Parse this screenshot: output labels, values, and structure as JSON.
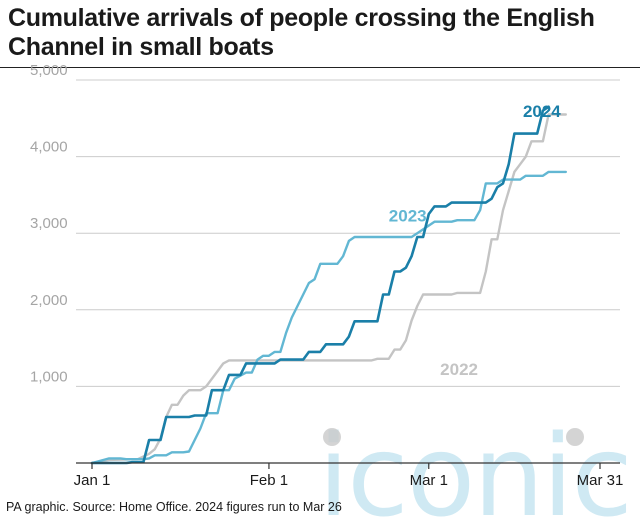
{
  "title": "Cumulative arrivals of people crossing the English Channel in small boats",
  "footer": "PA graphic. Source: Home Office. 2024 figures run to Mar 26",
  "watermark": "iconic",
  "colors": {
    "2024": "#1a7fa8",
    "2023": "#62b7d3",
    "2022": "#c4c4c4",
    "axis": "#333333",
    "grid": "#cccccc",
    "tick_text": "#a5a5a5",
    "watermark": "#bfe2ef"
  },
  "chart_data": {
    "type": "line",
    "title": "Cumulative arrivals of people crossing the English Channel in small boats",
    "xlabel": "",
    "ylabel": "",
    "x_unit": "day of year (Jan 1 = 1)",
    "xlim": [
      1,
      90
    ],
    "ylim": [
      0,
      5000
    ],
    "x_ticks": [
      {
        "label": "Jan 1",
        "value": 1
      },
      {
        "label": "Feb 1",
        "value": 32
      },
      {
        "label": "Mar 1",
        "value": 60
      },
      {
        "label": "Mar 31",
        "value": 90
      }
    ],
    "y_ticks": [
      {
        "label": "1,000",
        "value": 1000
      },
      {
        "label": "2,000",
        "value": 2000
      },
      {
        "label": "3,000",
        "value": 3000
      },
      {
        "label": "4,000",
        "value": 4000
      },
      {
        "label": "5,000",
        "value": 5000
      }
    ],
    "grid": true,
    "series": [
      {
        "name": "2022",
        "label_position": [
          62,
          1150
        ],
        "points": [
          [
            1,
            0
          ],
          [
            4,
            40
          ],
          [
            9,
            50
          ],
          [
            11,
            120
          ],
          [
            12,
            180
          ],
          [
            13,
            320
          ],
          [
            14,
            600
          ],
          [
            15,
            760
          ],
          [
            16,
            760
          ],
          [
            17,
            880
          ],
          [
            18,
            950
          ],
          [
            20,
            950
          ],
          [
            21,
            1000
          ],
          [
            23,
            1200
          ],
          [
            24,
            1300
          ],
          [
            25,
            1340
          ],
          [
            50,
            1340
          ],
          [
            51,
            1360
          ],
          [
            53,
            1360
          ],
          [
            54,
            1480
          ],
          [
            55,
            1480
          ],
          [
            56,
            1600
          ],
          [
            57,
            1860
          ],
          [
            58,
            2050
          ],
          [
            59,
            2200
          ],
          [
            64,
            2200
          ],
          [
            65,
            2220
          ],
          [
            69,
            2220
          ],
          [
            70,
            2500
          ],
          [
            71,
            2920
          ],
          [
            72,
            2920
          ],
          [
            73,
            3300
          ],
          [
            74,
            3550
          ],
          [
            75,
            3800
          ],
          [
            76,
            3900
          ],
          [
            77,
            4000
          ],
          [
            78,
            4200
          ],
          [
            80,
            4200
          ],
          [
            81,
            4550
          ],
          [
            84,
            4550
          ]
        ]
      },
      {
        "name": "2023",
        "label_position": [
          53,
          3150
        ],
        "points": [
          [
            1,
            0
          ],
          [
            2,
            20
          ],
          [
            4,
            60
          ],
          [
            6,
            60
          ],
          [
            7,
            50
          ],
          [
            10,
            50
          ],
          [
            11,
            60
          ],
          [
            12,
            100
          ],
          [
            14,
            100
          ],
          [
            15,
            140
          ],
          [
            17,
            140
          ],
          [
            18,
            150
          ],
          [
            19,
            300
          ],
          [
            20,
            450
          ],
          [
            21,
            650
          ],
          [
            23,
            650
          ],
          [
            24,
            950
          ],
          [
            25,
            950
          ],
          [
            26,
            1100
          ],
          [
            28,
            1180
          ],
          [
            29,
            1180
          ],
          [
            30,
            1350
          ],
          [
            31,
            1400
          ],
          [
            32,
            1400
          ],
          [
            33,
            1450
          ],
          [
            34,
            1450
          ],
          [
            35,
            1700
          ],
          [
            36,
            1900
          ],
          [
            37,
            2050
          ],
          [
            38,
            2200
          ],
          [
            39,
            2350
          ],
          [
            40,
            2400
          ],
          [
            41,
            2600
          ],
          [
            44,
            2600
          ],
          [
            45,
            2700
          ],
          [
            46,
            2900
          ],
          [
            47,
            2950
          ],
          [
            57,
            2950
          ],
          [
            58,
            3000
          ],
          [
            61,
            3150
          ],
          [
            64,
            3150
          ],
          [
            65,
            3170
          ],
          [
            68,
            3170
          ],
          [
            69,
            3300
          ],
          [
            70,
            3650
          ],
          [
            72,
            3650
          ],
          [
            73,
            3700
          ],
          [
            76,
            3700
          ],
          [
            77,
            3750
          ],
          [
            80,
            3750
          ],
          [
            81,
            3800
          ],
          [
            84,
            3800
          ]
        ]
      },
      {
        "name": "2024",
        "label_position": [
          76.5,
          4520
        ],
        "points": [
          [
            1,
            0
          ],
          [
            7,
            0
          ],
          [
            8,
            10
          ],
          [
            10,
            10
          ],
          [
            11,
            300
          ],
          [
            13,
            300
          ],
          [
            14,
            600
          ],
          [
            18,
            600
          ],
          [
            19,
            620
          ],
          [
            21,
            620
          ],
          [
            22,
            950
          ],
          [
            24,
            950
          ],
          [
            25,
            1150
          ],
          [
            27,
            1150
          ],
          [
            28,
            1300
          ],
          [
            33,
            1300
          ],
          [
            34,
            1350
          ],
          [
            38,
            1350
          ],
          [
            39,
            1450
          ],
          [
            41,
            1450
          ],
          [
            42,
            1550
          ],
          [
            45,
            1550
          ],
          [
            46,
            1650
          ],
          [
            47,
            1850
          ],
          [
            51,
            1850
          ],
          [
            52,
            2200
          ],
          [
            53,
            2200
          ],
          [
            54,
            2500
          ],
          [
            55,
            2500
          ],
          [
            56,
            2550
          ],
          [
            57,
            2700
          ],
          [
            58,
            2950
          ],
          [
            59,
            2950
          ],
          [
            60,
            3250
          ],
          [
            61,
            3350
          ],
          [
            63,
            3350
          ],
          [
            64,
            3400
          ],
          [
            70,
            3400
          ],
          [
            71,
            3450
          ],
          [
            72,
            3600
          ],
          [
            73,
            3650
          ],
          [
            74,
            3900
          ],
          [
            75,
            4300
          ],
          [
            79,
            4300
          ],
          [
            80,
            4600
          ],
          [
            81,
            4650
          ]
        ]
      }
    ]
  }
}
